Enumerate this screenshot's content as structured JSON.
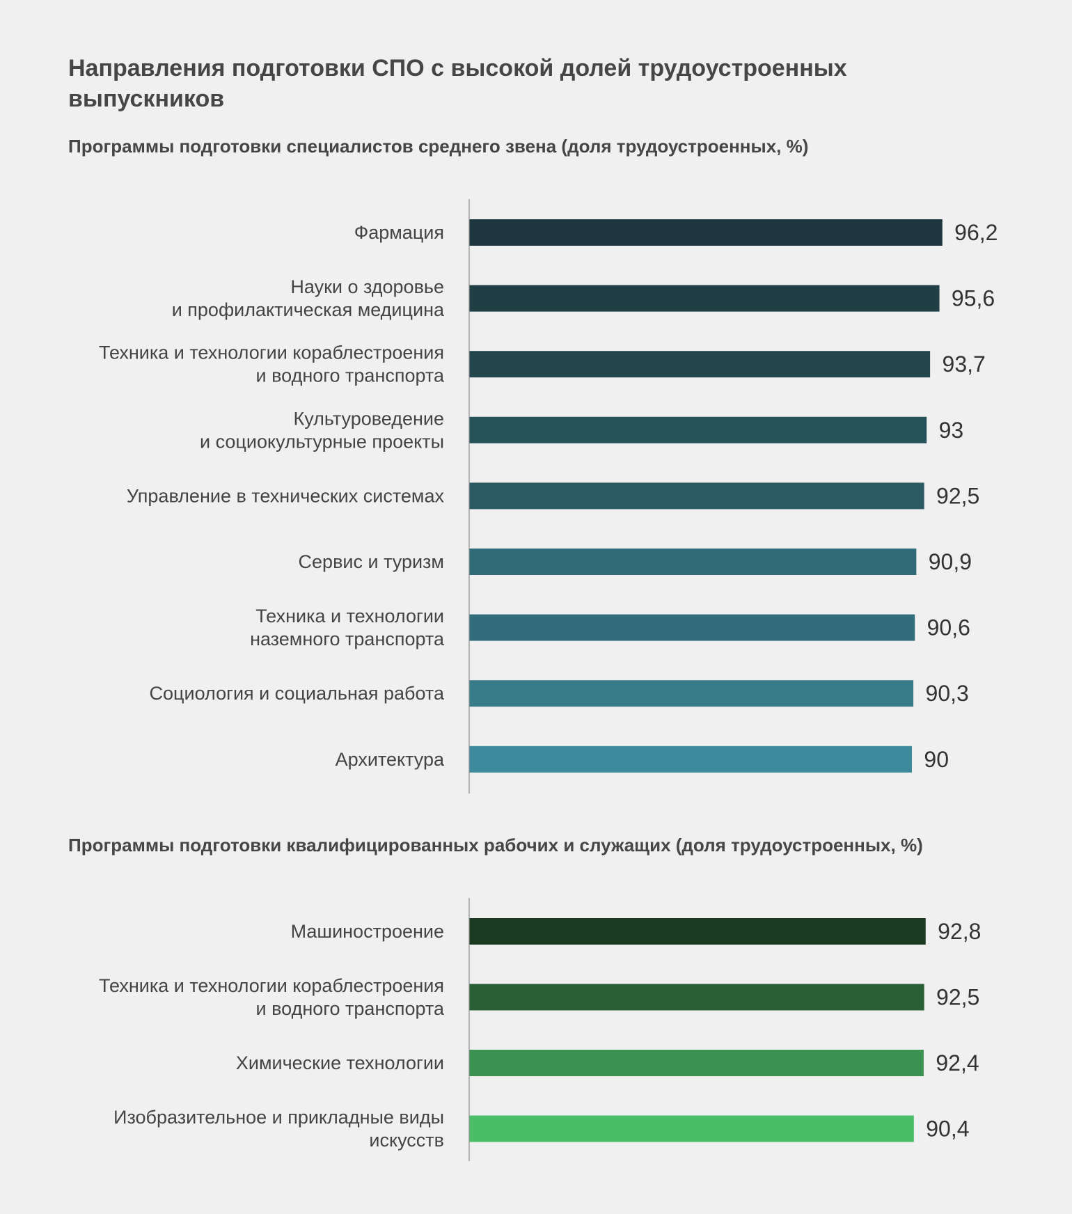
{
  "header": {
    "title": "Направления подготовки СПО с высокой долей трудоустроенных выпускников"
  },
  "chart_data": [
    {
      "type": "bar",
      "orientation": "horizontal",
      "title": "Программы подготовки специалистов среднего звена (доля трудоустроенных, %)",
      "categories": [
        [
          "Фармация"
        ],
        [
          "Науки о здоровье",
          "и профилактическая медицина"
        ],
        [
          "Техника и технологии кораблестроения",
          "и водного транспорта"
        ],
        [
          "Культуроведение",
          "и социокультурные проекты"
        ],
        [
          "Управление в технических системах"
        ],
        [
          "Сервис и туризм"
        ],
        [
          "Техника и технологии",
          "наземного транспорта"
        ],
        [
          "Социология и социальная работа"
        ],
        [
          "Архитектура"
        ]
      ],
      "values": [
        96.2,
        95.6,
        93.7,
        93,
        92.5,
        90.9,
        90.6,
        90.3,
        90
      ],
      "value_labels": [
        "96,2",
        "95,6",
        "93,7",
        "93",
        "92,5",
        "90,9",
        "90,6",
        "90,3",
        "90"
      ],
      "colors": [
        "#1e363d",
        "#203f45",
        "#23464d",
        "#275158",
        "#2b5a63",
        "#306a77",
        "#336d7b",
        "#387c89",
        "#3e8a9d"
      ],
      "xlim": [
        0,
        100
      ],
      "grid": false,
      "legend": "none"
    },
    {
      "type": "bar",
      "orientation": "horizontal",
      "title": "Программы подготовки квалифицированных рабочих и служащих (доля трудоустроенных, %)",
      "categories": [
        [
          "Машиностроение"
        ],
        [
          "Техника и технологии кораблестроения",
          "и водного транспорта"
        ],
        [
          "Химические технологии"
        ],
        [
          "Изобразительное и прикладные виды",
          "искусств"
        ]
      ],
      "values": [
        92.8,
        92.5,
        92.4,
        90.4
      ],
      "value_labels": [
        "92,8",
        "92,5",
        "92,4",
        "90,4"
      ],
      "colors": [
        "#1b3a22",
        "#2a5f35",
        "#3a9150",
        "#4abd66"
      ],
      "xlim": [
        0,
        100
      ],
      "grid": false,
      "legend": "none"
    }
  ]
}
